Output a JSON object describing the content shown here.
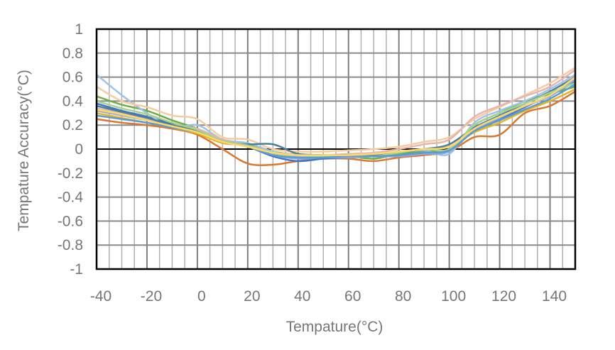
{
  "chart_data": {
    "type": "line",
    "title": "",
    "xlabel": "Tempature(°C)",
    "ylabel": "Tempature Accuracy(°C)",
    "xlim": [
      -40,
      150
    ],
    "ylim": [
      -1,
      1
    ],
    "grid": true,
    "legend": "none",
    "x_ticks": [
      "-40",
      "-20",
      "0",
      "20",
      "40",
      "60",
      "80",
      "100",
      "120",
      "140"
    ],
    "y_ticks": [
      "1",
      "0.8",
      "0.6",
      "0.4",
      "0.2",
      "0",
      "-0.2",
      "-0.4",
      "-0.6",
      "-0.8",
      "-1"
    ],
    "x": [
      -40,
      -30,
      -20,
      -10,
      0,
      10,
      20,
      30,
      40,
      50,
      60,
      70,
      80,
      90,
      100,
      110,
      120,
      130,
      140,
      150
    ],
    "series": [
      {
        "color": "#d9782f",
        "values": [
          0.25,
          0.22,
          0.2,
          0.17,
          0.12,
          0.0,
          -0.12,
          -0.13,
          -0.1,
          -0.08,
          -0.08,
          -0.1,
          -0.07,
          -0.05,
          -0.02,
          0.1,
          0.12,
          0.3,
          0.36,
          0.48
        ]
      },
      {
        "color": "#4472c4",
        "values": [
          0.38,
          0.32,
          0.27,
          0.21,
          0.15,
          0.06,
          0.02,
          -0.06,
          -0.1,
          -0.08,
          -0.07,
          -0.06,
          -0.05,
          -0.02,
          0.0,
          0.15,
          0.25,
          0.35,
          0.45,
          0.56
        ]
      },
      {
        "color": "#70ad47",
        "values": [
          0.44,
          0.37,
          0.32,
          0.24,
          0.17,
          0.08,
          0.04,
          -0.02,
          -0.05,
          -0.06,
          -0.06,
          -0.08,
          -0.04,
          -0.02,
          0.0,
          0.2,
          0.3,
          0.4,
          0.46,
          0.52
        ]
      },
      {
        "color": "#e6b422",
        "values": [
          0.3,
          0.26,
          0.22,
          0.18,
          0.13,
          0.05,
          0.03,
          -0.03,
          -0.06,
          -0.05,
          -0.06,
          -0.05,
          -0.02,
          0.0,
          0.02,
          0.14,
          0.22,
          0.32,
          0.4,
          0.5
        ]
      },
      {
        "color": "#9dc3e6",
        "values": [
          0.62,
          0.45,
          0.3,
          0.18,
          0.2,
          0.08,
          0.05,
          -0.02,
          -0.06,
          -0.06,
          -0.05,
          -0.05,
          -0.03,
          -0.01,
          -0.04,
          0.22,
          0.32,
          0.4,
          0.5,
          0.62
        ]
      },
      {
        "color": "#f4cca0",
        "values": [
          0.52,
          0.4,
          0.35,
          0.28,
          0.25,
          0.1,
          0.08,
          0.0,
          -0.02,
          -0.02,
          -0.01,
          0.0,
          0.02,
          0.06,
          0.1,
          0.25,
          0.35,
          0.45,
          0.55,
          0.68
        ]
      },
      {
        "color": "#e8b4b0",
        "values": [
          0.34,
          0.3,
          0.25,
          0.2,
          0.17,
          0.08,
          0.03,
          -0.03,
          -0.04,
          -0.05,
          -0.04,
          -0.03,
          0.0,
          0.04,
          0.08,
          0.27,
          0.36,
          0.44,
          0.52,
          0.66
        ]
      },
      {
        "color": "#8faadc",
        "values": [
          0.32,
          0.28,
          0.24,
          0.19,
          0.14,
          0.07,
          0.03,
          -0.05,
          -0.08,
          -0.07,
          -0.07,
          -0.06,
          -0.06,
          -0.04,
          -0.02,
          0.16,
          0.26,
          0.36,
          0.44,
          0.58
        ]
      },
      {
        "color": "#4a7fa0",
        "values": [
          0.36,
          0.31,
          0.26,
          0.2,
          0.15,
          0.06,
          0.04,
          0.04,
          -0.04,
          -0.05,
          -0.05,
          -0.05,
          -0.03,
          0.0,
          0.04,
          0.18,
          0.28,
          0.38,
          0.48,
          0.6
        ]
      },
      {
        "color": "#a9d18e",
        "values": [
          0.4,
          0.34,
          0.29,
          0.22,
          0.16,
          0.07,
          0.03,
          -0.04,
          -0.05,
          -0.06,
          -0.06,
          -0.06,
          -0.03,
          0.0,
          0.0,
          0.2,
          0.3,
          0.38,
          0.47,
          0.55
        ]
      },
      {
        "color": "#5b9bd5",
        "values": [
          0.28,
          0.25,
          0.22,
          0.18,
          0.14,
          0.06,
          0.02,
          -0.05,
          -0.07,
          -0.07,
          -0.06,
          -0.06,
          -0.05,
          -0.03,
          -0.01,
          0.15,
          0.24,
          0.33,
          0.42,
          0.54
        ]
      },
      {
        "color": "#ffd966",
        "values": [
          0.33,
          0.29,
          0.24,
          0.19,
          0.14,
          0.06,
          0.02,
          -0.03,
          -0.05,
          -0.05,
          -0.05,
          -0.04,
          -0.02,
          0.0,
          0.02,
          0.17,
          0.27,
          0.36,
          0.45,
          0.6
        ]
      }
    ]
  }
}
